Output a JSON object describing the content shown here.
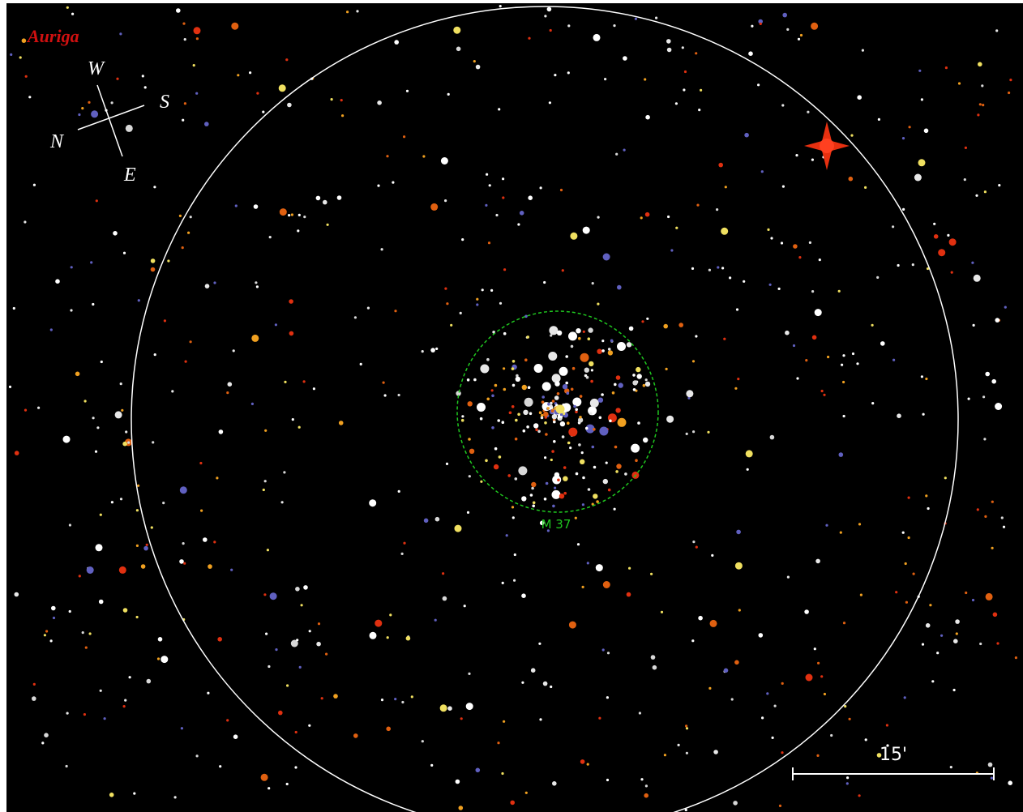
{
  "constellation": "Auriga",
  "compass": {
    "west": "W",
    "south": "S",
    "north": "N",
    "east": "E"
  },
  "object_label": "M 37",
  "scale_label": "15'"
}
